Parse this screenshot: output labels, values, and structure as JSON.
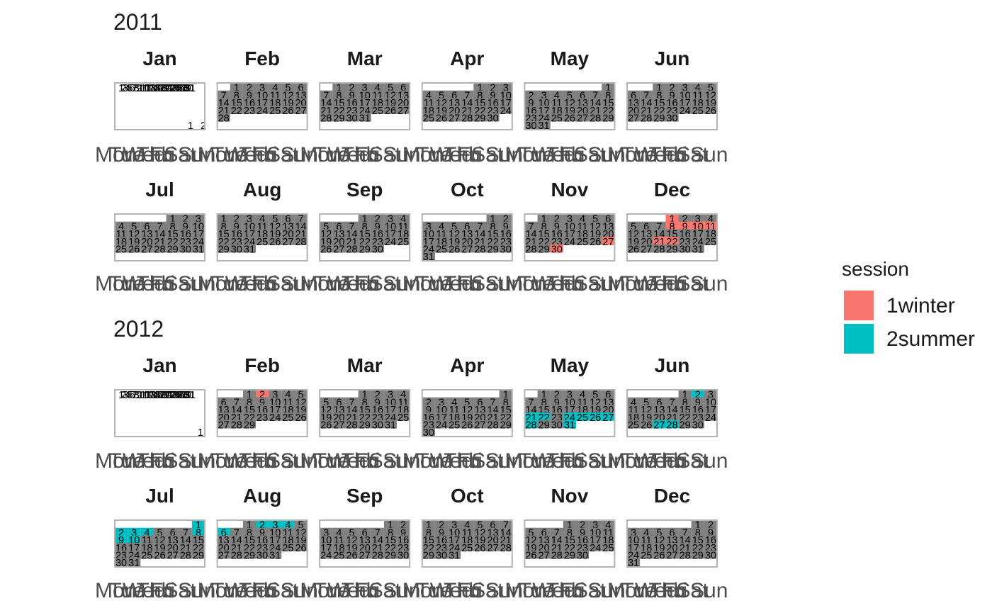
{
  "chart_data": {
    "type": "heatmap",
    "layout": "calendar",
    "years": [
      2011,
      2012
    ],
    "year_labels": [
      "2011",
      "2012"
    ],
    "months": [
      "Jan",
      "Feb",
      "Mar",
      "Apr",
      "May",
      "Jun",
      "Jul",
      "Aug",
      "Sep",
      "Oct",
      "Nov",
      "Dec"
    ],
    "weekdays": [
      "Mon",
      "Tue",
      "Wed",
      "Thu",
      "Fri",
      "Sat",
      "Sun"
    ],
    "legend": {
      "title": "session",
      "entries": [
        {
          "name": "1winter",
          "color": "#F8766D"
        },
        {
          "name": "2summer",
          "color": "#00BFC4"
        }
      ]
    },
    "colors": {
      "active_day": "#808080",
      "inactive_day": "#ffffff",
      "panel_border": "#b3b3b3"
    },
    "sessions": {
      "1winter": [
        "2011-11-27",
        "2011-11-30",
        "2011-12-01",
        "2011-12-08",
        "2011-12-09",
        "2011-12-10",
        "2011-12-11",
        "2011-12-21",
        "2011-12-22",
        "2012-02-02"
      ],
      "2summer": [
        "2012-05-21",
        "2012-05-22",
        "2012-05-24",
        "2012-05-25",
        "2012-05-26",
        "2012-05-27",
        "2012-05-28",
        "2012-05-31",
        "2012-06-02",
        "2012-06-27",
        "2012-06-28",
        "2012-07-01",
        "2012-07-02",
        "2012-07-03",
        "2012-07-04",
        "2012-07-08",
        "2012-07-09",
        "2012-07-10",
        "2012-08-02",
        "2012-08-03",
        "2012-08-04",
        "2012-08-06"
      ]
    }
  }
}
